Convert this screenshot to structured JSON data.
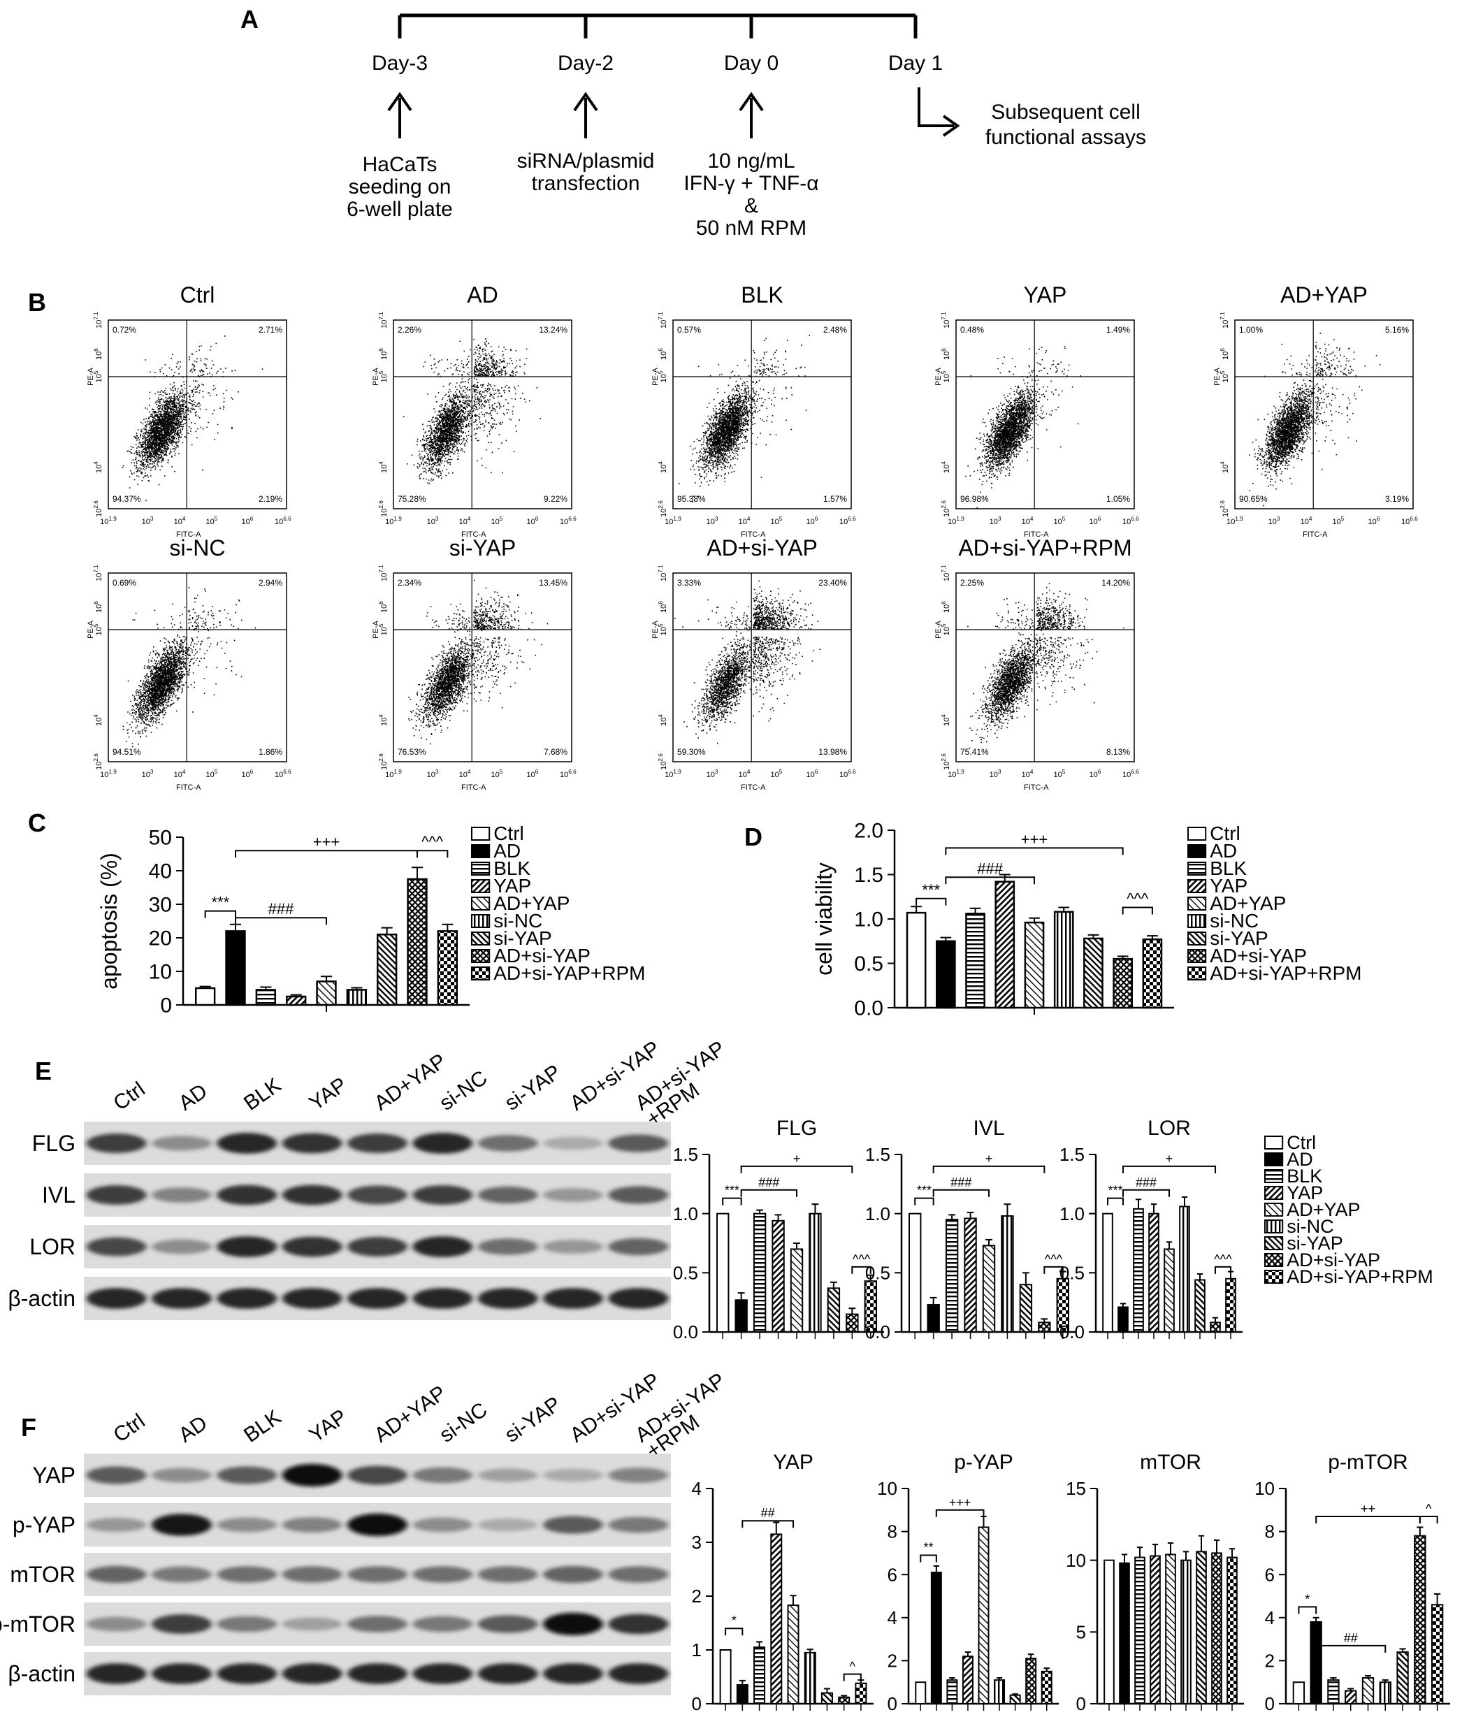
{
  "panels": {
    "A": {
      "letter": "A",
      "timeline": [
        {
          "day": "Day-3",
          "lines": [
            "HaCaTs",
            "seeding on",
            "6-well plate"
          ]
        },
        {
          "day": "Day-2",
          "lines": [
            "siRNA/plasmid",
            "transfection"
          ]
        },
        {
          "day": "Day 0",
          "lines": [
            "10 ng/mL",
            "IFN-γ + TNF-α",
            "&",
            "50 nM RPM"
          ]
        },
        {
          "day": "Day 1",
          "lines": [
            "Subsequent cell",
            "functional assays"
          ]
        }
      ]
    },
    "B": {
      "letter": "B",
      "y_axis_label": "PE-A",
      "x_axis_label": "FITC-A",
      "x_ticks": [
        "10^1.9",
        "10^3",
        "10^4",
        "10^5",
        "10^6",
        "10^6.6"
      ],
      "y_ticks": [
        "10^2.6",
        "10^4",
        "10^5",
        "10^6",
        "10^7.1"
      ]
    },
    "C": {
      "letter": "C"
    },
    "D": {
      "letter": "D"
    },
    "E": {
      "letter": "E",
      "blot_rows": [
        "FLG",
        "IVL",
        "LOR",
        "β-actin"
      ]
    },
    "F": {
      "letter": "F",
      "blot_rows": [
        "YAP",
        "p-YAP",
        "mTOR",
        "p-mTOR",
        "β-actin"
      ]
    }
  },
  "groups": [
    "Ctrl",
    "AD",
    "BLK",
    "YAP",
    "AD+YAP",
    "si-NC",
    "si-YAP",
    "AD+si-YAP",
    "AD+si-YAP+RPM"
  ],
  "blot_lane_labels": [
    "Ctrl",
    "AD",
    "BLK",
    "YAP",
    "AD+YAP",
    "si-NC",
    "si-YAP",
    "AD+si-YAP",
    "AD+si-YAP\n+RPM"
  ],
  "chart_data": [
    {
      "type": "scatter",
      "title": "Flow cytometry quadrants",
      "plots": [
        {
          "name": "Ctrl",
          "UL": "0.72%",
          "UR": "2.71%",
          "LL": "94.37%",
          "LR": "2.19%"
        },
        {
          "name": "AD",
          "UL": "2.26%",
          "UR": "13.24%",
          "LL": "75.28%",
          "LR": "9.22%"
        },
        {
          "name": "BLK",
          "UL": "0.57%",
          "UR": "2.48%",
          "LL": "95.38%",
          "LR": "1.57%"
        },
        {
          "name": "YAP",
          "UL": "0.48%",
          "UR": "1.49%",
          "LL": "96.98%",
          "LR": "1.05%"
        },
        {
          "name": "AD+YAP",
          "UL": "1.00%",
          "UR": "5.16%",
          "LL": "90.65%",
          "LR": "3.19%"
        },
        {
          "name": "si-NC",
          "UL": "0.69%",
          "UR": "2.94%",
          "LL": "94.51%",
          "LR": "1.86%"
        },
        {
          "name": "si-YAP",
          "UL": "2.34%",
          "UR": "13.45%",
          "LL": "76.53%",
          "LR": "7.68%"
        },
        {
          "name": "AD+si-YAP",
          "UL": "3.33%",
          "UR": "23.40%",
          "LL": "59.30%",
          "LR": "13.98%"
        },
        {
          "name": "AD+si-YAP+RPM",
          "UL": "2.25%",
          "UR": "14.20%",
          "LL": "75.41%",
          "LR": "8.13%"
        }
      ]
    },
    {
      "type": "bar",
      "panel": "C",
      "title": "",
      "ylabel": "apoptosis (%)",
      "ylim": [
        0,
        50
      ],
      "yticks": [
        0,
        10,
        20,
        30,
        40,
        50
      ],
      "categories": [
        "Ctrl",
        "AD",
        "BLK",
        "YAP",
        "AD+YAP",
        "si-NC",
        "si-YAP",
        "AD+si-YAP",
        "AD+si-YAP+RPM"
      ],
      "values": [
        5,
        22,
        4.5,
        2.5,
        7,
        4.5,
        21,
        37.5,
        22
      ],
      "errors": [
        0.5,
        2,
        0.8,
        0.5,
        1.5,
        0.6,
        2,
        3.5,
        2
      ],
      "annotations": [
        {
          "text": "***",
          "from": 0,
          "to": 1,
          "y": 28
        },
        {
          "text": "###",
          "from": 1,
          "to": 4,
          "y": 26
        },
        {
          "text": "+++",
          "from": 1,
          "to": 7,
          "y": 46
        },
        {
          "text": "^^^",
          "from": 7,
          "to": 8,
          "y": 46
        }
      ]
    },
    {
      "type": "bar",
      "panel": "D",
      "title": "",
      "ylabel": "cell viability",
      "ylim": [
        0,
        2.0
      ],
      "yticks": [
        "0.0",
        "0.5",
        "1.0",
        "1.5",
        "2.0"
      ],
      "categories": [
        "Ctrl",
        "AD",
        "BLK",
        "YAP",
        "AD+YAP",
        "si-NC",
        "si-YAP",
        "AD+si-YAP",
        "AD+si-YAP+RPM"
      ],
      "values": [
        1.07,
        0.75,
        1.06,
        1.42,
        0.96,
        1.08,
        0.78,
        0.55,
        0.77
      ],
      "errors": [
        0.07,
        0.04,
        0.06,
        0.08,
        0.05,
        0.05,
        0.04,
        0.03,
        0.04
      ],
      "annotations": [
        {
          "text": "***",
          "from": 0,
          "to": 1,
          "y": 1.23
        },
        {
          "text": "###",
          "from": 1,
          "to": 4,
          "y": 1.47
        },
        {
          "text": "+++",
          "from": 1,
          "to": 7,
          "y": 1.8
        },
        {
          "text": "^^^",
          "from": 7,
          "to": 8,
          "y": 1.13
        }
      ]
    },
    {
      "type": "bar",
      "panel": "E",
      "title": "FLG",
      "ylim": [
        0,
        1.5
      ],
      "yticks": [
        "0.0",
        "0.5",
        "1.0",
        "1.5"
      ],
      "categories": [
        "Ctrl",
        "AD",
        "BLK",
        "YAP",
        "AD+YAP",
        "si-NC",
        "si-YAP",
        "AD+si-YAP",
        "AD+si-YAP+RPM"
      ],
      "values": [
        1.0,
        0.27,
        1.0,
        0.94,
        0.7,
        1.0,
        0.37,
        0.15,
        0.43
      ],
      "errors": [
        0,
        0.06,
        0.03,
        0.05,
        0.05,
        0.08,
        0.05,
        0.05,
        0.05
      ],
      "annotations": [
        {
          "text": "***",
          "from": 0,
          "to": 1,
          "y": 1.13
        },
        {
          "text": "###",
          "from": 1,
          "to": 4,
          "y": 1.2
        },
        {
          "text": "+",
          "from": 1,
          "to": 7,
          "y": 1.4
        },
        {
          "text": "^^^",
          "from": 7,
          "to": 8,
          "y": 0.55
        }
      ]
    },
    {
      "type": "bar",
      "panel": "E",
      "title": "IVL",
      "ylim": [
        0,
        1.5
      ],
      "yticks": [
        "0.0",
        "0.5",
        "1.0",
        "1.5"
      ],
      "categories": [
        "Ctrl",
        "AD",
        "BLK",
        "YAP",
        "AD+YAP",
        "si-NC",
        "si-YAP",
        "AD+si-YAP",
        "AD+si-YAP+RPM"
      ],
      "values": [
        1.0,
        0.23,
        0.95,
        0.96,
        0.73,
        0.98,
        0.4,
        0.08,
        0.45
      ],
      "errors": [
        0,
        0.06,
        0.04,
        0.05,
        0.05,
        0.1,
        0.1,
        0.03,
        0.06
      ],
      "annotations": [
        {
          "text": "***",
          "from": 0,
          "to": 1,
          "y": 1.13
        },
        {
          "text": "###",
          "from": 1,
          "to": 4,
          "y": 1.2
        },
        {
          "text": "+",
          "from": 1,
          "to": 7,
          "y": 1.4
        },
        {
          "text": "^^^",
          "from": 7,
          "to": 8,
          "y": 0.55
        }
      ]
    },
    {
      "type": "bar",
      "panel": "E",
      "title": "LOR",
      "ylim": [
        0,
        1.5
      ],
      "yticks": [
        "0.0",
        "0.5",
        "1.0",
        "1.5"
      ],
      "categories": [
        "Ctrl",
        "AD",
        "BLK",
        "YAP",
        "AD+YAP",
        "si-NC",
        "si-YAP",
        "AD+si-YAP",
        "AD+si-YAP+RPM"
      ],
      "values": [
        1.0,
        0.21,
        1.04,
        1.0,
        0.7,
        1.06,
        0.44,
        0.08,
        0.45
      ],
      "errors": [
        0,
        0.03,
        0.08,
        0.08,
        0.06,
        0.08,
        0.05,
        0.04,
        0.06
      ],
      "annotations": [
        {
          "text": "***",
          "from": 0,
          "to": 1,
          "y": 1.13
        },
        {
          "text": "###",
          "from": 1,
          "to": 4,
          "y": 1.2
        },
        {
          "text": "+",
          "from": 1,
          "to": 7,
          "y": 1.4
        },
        {
          "text": "^^^",
          "from": 7,
          "to": 8,
          "y": 0.55
        }
      ]
    },
    {
      "type": "bar",
      "panel": "F",
      "title": "YAP",
      "ylim": [
        0,
        4
      ],
      "yticks": [
        0,
        1,
        2,
        3,
        4
      ],
      "categories": [
        "Ctrl",
        "AD",
        "BLK",
        "YAP",
        "AD+YAP",
        "si-NC",
        "si-YAP",
        "AD+si-YAP",
        "AD+si-YAP+RPM"
      ],
      "values": [
        1.0,
        0.35,
        1.05,
        3.15,
        1.83,
        0.95,
        0.2,
        0.12,
        0.38
      ],
      "errors": [
        0,
        0.08,
        0.1,
        0.22,
        0.18,
        0.06,
        0.08,
        0.03,
        0.06
      ],
      "annotations": [
        {
          "text": "*",
          "from": 0,
          "to": 1,
          "y": 1.4
        },
        {
          "text": "##",
          "from": 1,
          "to": 4,
          "y": 3.4
        },
        {
          "text": "^",
          "from": 7,
          "to": 8,
          "y": 0.55
        }
      ]
    },
    {
      "type": "bar",
      "panel": "F",
      "title": "p-YAP",
      "ylim": [
        0,
        10
      ],
      "yticks": [
        0,
        2,
        4,
        6,
        8,
        10
      ],
      "categories": [
        "Ctrl",
        "AD",
        "BLK",
        "YAP",
        "AD+YAP",
        "si-NC",
        "si-YAP",
        "AD+si-YAP",
        "AD+si-YAP+RPM"
      ],
      "values": [
        1.0,
        6.1,
        1.1,
        2.2,
        8.2,
        1.1,
        0.4,
        2.1,
        1.5
      ],
      "errors": [
        0,
        0.3,
        0.1,
        0.2,
        0.5,
        0.1,
        0.05,
        0.2,
        0.15
      ],
      "annotations": [
        {
          "text": "**",
          "from": 0,
          "to": 1,
          "y": 6.9
        },
        {
          "text": "+++",
          "from": 1,
          "to": 4,
          "y": 9.0
        }
      ]
    },
    {
      "type": "bar",
      "panel": "F",
      "title": "mTOR",
      "ylim": [
        0,
        15
      ],
      "yticks": [
        0,
        5,
        10,
        15
      ],
      "categories": [
        "Ctrl",
        "AD",
        "BLK",
        "YAP",
        "AD+YAP",
        "si-NC",
        "si-YAP",
        "AD+si-YAP",
        "AD+si-YAP+RPM"
      ],
      "values": [
        10,
        9.8,
        10.2,
        10.3,
        10.4,
        10,
        10.6,
        10.5,
        10.2
      ],
      "errors": [
        0,
        0.6,
        0.7,
        0.8,
        0.8,
        0.6,
        1.1,
        0.9,
        0.6
      ],
      "annotations": []
    },
    {
      "type": "bar",
      "panel": "F",
      "title": "p-mTOR",
      "ylim": [
        0,
        10
      ],
      "yticks": [
        0,
        2,
        4,
        6,
        8,
        10
      ],
      "categories": [
        "Ctrl",
        "AD",
        "BLK",
        "YAP",
        "AD+YAP",
        "si-NC",
        "si-YAP",
        "AD+si-YAP",
        "AD+si-YAP+RPM"
      ],
      "values": [
        1.0,
        3.8,
        1.1,
        0.6,
        1.2,
        1.0,
        2.4,
        7.8,
        4.6
      ],
      "errors": [
        0,
        0.2,
        0.1,
        0.1,
        0.1,
        0.1,
        0.15,
        0.4,
        0.5
      ],
      "annotations": [
        {
          "text": "*",
          "from": 0,
          "to": 1,
          "y": 4.5
        },
        {
          "text": "##",
          "from": 1,
          "to": 5,
          "y": 2.7
        },
        {
          "text": "++",
          "from": 1,
          "to": 7,
          "y": 8.7
        },
        {
          "text": "^",
          "from": 7,
          "to": 8,
          "y": 8.7
        }
      ]
    }
  ],
  "blots": {
    "E": [
      [
        0.75,
        0.35,
        0.85,
        0.8,
        0.75,
        0.85,
        0.5,
        0.2,
        0.6
      ],
      [
        0.75,
        0.4,
        0.8,
        0.8,
        0.7,
        0.75,
        0.55,
        0.3,
        0.6
      ],
      [
        0.7,
        0.35,
        0.85,
        0.8,
        0.75,
        0.85,
        0.5,
        0.3,
        0.55
      ],
      [
        0.85,
        0.85,
        0.85,
        0.85,
        0.85,
        0.85,
        0.85,
        0.85,
        0.85
      ]
    ],
    "F": [
      [
        0.6,
        0.35,
        0.6,
        1.0,
        0.7,
        0.45,
        0.25,
        0.2,
        0.4
      ],
      [
        0.3,
        0.95,
        0.35,
        0.4,
        1.0,
        0.35,
        0.2,
        0.6,
        0.45
      ],
      [
        0.55,
        0.45,
        0.5,
        0.5,
        0.5,
        0.5,
        0.5,
        0.55,
        0.5
      ],
      [
        0.35,
        0.75,
        0.45,
        0.25,
        0.5,
        0.45,
        0.6,
        1.0,
        0.8
      ],
      [
        0.85,
        0.85,
        0.85,
        0.85,
        0.85,
        0.85,
        0.85,
        0.85,
        0.85
      ]
    ]
  }
}
